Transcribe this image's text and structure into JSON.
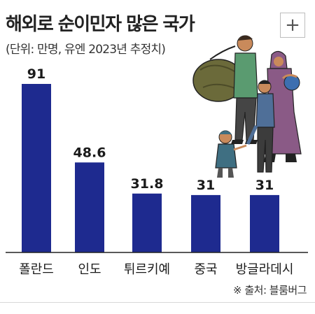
{
  "header": {
    "title": "해외로 순이민자 많은 국가",
    "subtitle": "(단위: 만명, 유엔 2023년 추정치)",
    "expand_label": "+"
  },
  "source": "※ 출처: 블룸버그",
  "colors": {
    "bar": "#1e2a8f",
    "axis": "#222222",
    "text": "#1a1a1a"
  },
  "chart_data": {
    "type": "bar",
    "categories": [
      "폴란드",
      "인도",
      "튀르키예",
      "중국",
      "방글라데시"
    ],
    "values": [
      91,
      48.6,
      31.8,
      31,
      31
    ],
    "value_labels": [
      "91",
      "48.6",
      "31.8",
      "31",
      "31"
    ],
    "title": "해외로 순이민자 많은 국가",
    "subtitle": "(단위: 만명, 유엔 2023년 추정치)",
    "xlabel": "",
    "ylabel": "",
    "ylim": [
      0,
      95
    ],
    "grid": false
  },
  "illustration": {
    "icon": "migrant-family-icon"
  }
}
